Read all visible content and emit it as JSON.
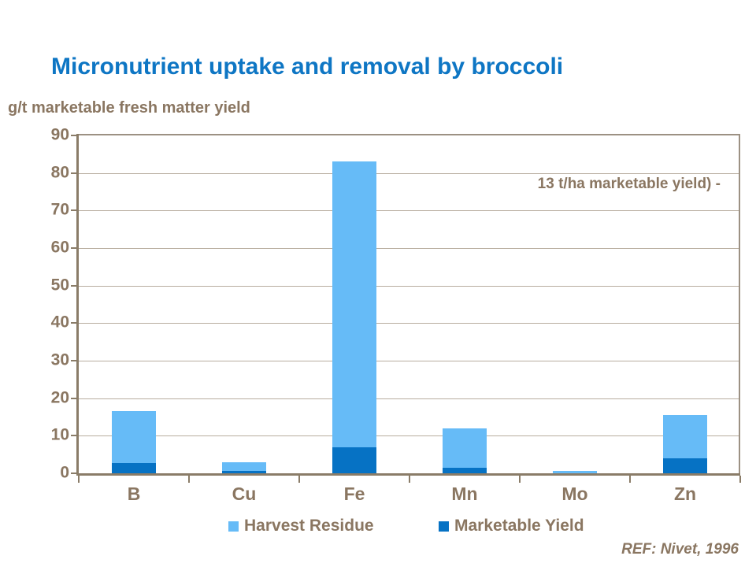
{
  "slide": {
    "reference": "REF: Nivet, 1996"
  },
  "chart_data": {
    "type": "bar",
    "stacked": true,
    "title": "Micronutrient uptake and removal by broccoli",
    "unit_label": "g/t marketable fresh matter yield",
    "annotation": "13 t/ha marketable yield) -",
    "categories": [
      "B",
      "Cu",
      "Fe",
      "Mn",
      "Mo",
      "Zn"
    ],
    "series": [
      {
        "name": "Marketable Yield",
        "color": "#0672c4",
        "values": [
          2.7,
          0.6,
          7,
          1.4,
          0.1,
          4
        ]
      },
      {
        "name": "Harvest Residue",
        "color": "#66bbf7",
        "values": [
          13.8,
          2.4,
          76,
          10.6,
          0.5,
          11.5
        ]
      }
    ],
    "totals": [
      16.5,
      3,
      83,
      12,
      0.6,
      15.5
    ],
    "ylabel": "g/t marketable fresh matter yield",
    "xlabel": "",
    "ylim": [
      0,
      90
    ],
    "yticks": [
      0,
      10,
      20,
      30,
      40,
      50,
      60,
      70,
      80,
      90
    ],
    "grid": true,
    "legend_position": "bottom"
  },
  "legend": {
    "items": [
      {
        "label": "Harvest Residue",
        "color": "#66bbf7"
      },
      {
        "label": "Marketable Yield",
        "color": "#0672c4"
      }
    ]
  },
  "colors": {
    "title": "#0e76c4",
    "text": "#8a7661",
    "gridline": "#b8ad9f",
    "frame": "#9c9183",
    "axis": "#8a7c68",
    "background": "#ffffff"
  }
}
